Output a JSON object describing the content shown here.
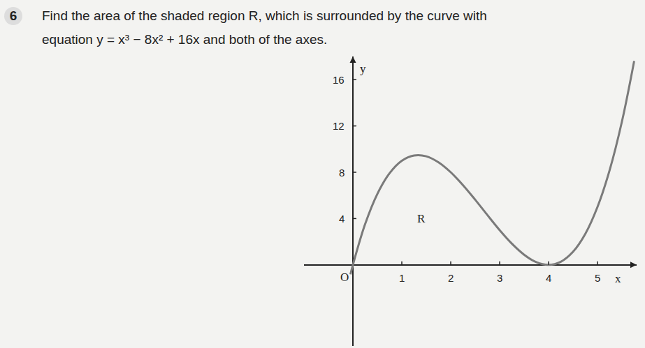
{
  "question": {
    "number": 6,
    "lines": [
      "Find the area of the shaded region R, which is surrounded by the curve with",
      "equation y = x³ − 8x² + 16x and both of the axes."
    ]
  },
  "chart_data": {
    "type": "line",
    "x_label": "x",
    "y_label": "y",
    "x": [
      -0.05,
      0,
      0.25,
      0.5,
      0.75,
      1,
      1.25,
      1.5,
      1.75,
      2,
      2.25,
      2.5,
      2.75,
      3,
      3.25,
      3.5,
      3.75,
      4,
      4.25,
      4.5,
      4.75,
      5,
      5.25,
      5.5,
      5.75
    ],
    "values": [
      -0.82,
      0,
      3.52,
      6.13,
      7.92,
      9,
      9.45,
      9.38,
      8.86,
      8,
      6.89,
      5.63,
      4.3,
      3,
      1.83,
      0.88,
      0.23,
      0,
      0.27,
      1.13,
      2.67,
      5,
      8.2,
      12.38,
      17.61
    ],
    "color": "#7a7a7a",
    "xlim": [
      -1,
      5.8
    ],
    "ylim": [
      -7,
      18
    ],
    "xticks": [
      1,
      2,
      3,
      4,
      5
    ],
    "yticks": [
      4,
      8,
      12,
      16
    ],
    "grid": false,
    "annotations": [
      {
        "text": "O",
        "x": 0,
        "y": 0
      },
      {
        "text": "R",
        "x": 1.4,
        "y": 4
      }
    ]
  }
}
